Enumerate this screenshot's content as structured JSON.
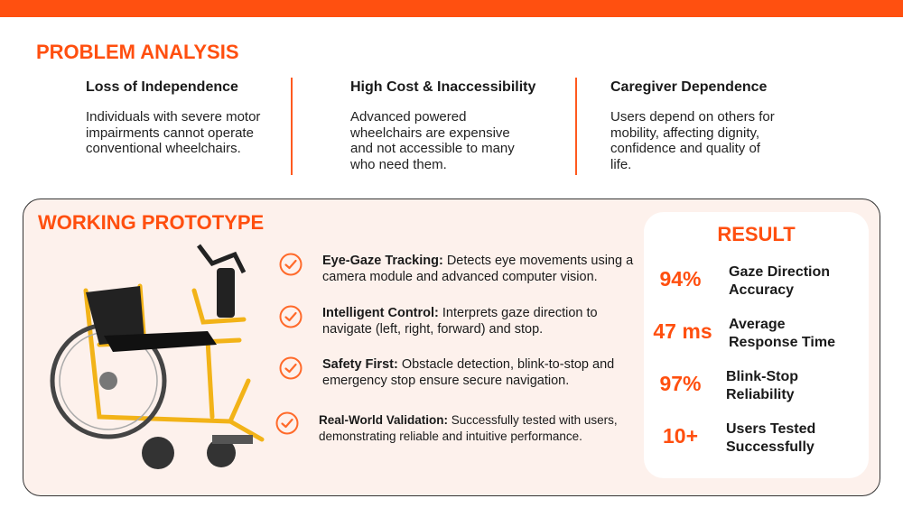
{
  "problem": {
    "title": "PROBLEM ANALYSIS",
    "columns": [
      {
        "heading": "Loss of Independence",
        "text": "Individuals with severe motor impairments cannot operate conventional wheelchairs."
      },
      {
        "heading": "High Cost & Inaccessibility",
        "text": "Advanced powered wheelchairs are expensive and not accessible to many who need them."
      },
      {
        "heading": "Caregiver Dependence",
        "text": "Users depend on others for mobility, affecting dignity, confidence and quality of life."
      }
    ]
  },
  "prototype": {
    "title": "WORKING PROTOTYPE",
    "features": [
      {
        "lead": "Eye-Gaze Tracking:",
        "text": "Detects eye movements using a camera module and advanced computer vision."
      },
      {
        "lead": "Intelligent Control:",
        "text": "Interprets gaze direction to navigate (left, right, forward) and stop."
      },
      {
        "lead": "Safety First:",
        "text": "Obstacle detection, blink-to-stop and emergency stop ensure secure navigation."
      },
      {
        "lead": "Real-World Validation:",
        "text": "Successfully tested with users, demonstrating reliable and intuitive performance."
      }
    ]
  },
  "result": {
    "title": "RESULT",
    "rows": [
      {
        "value": "94%",
        "label": "Gaze Direction Accuracy"
      },
      {
        "value": "47 ms",
        "label": "Average Response Time"
      },
      {
        "value": "97%",
        "label": "Blink-Stop Reliability"
      },
      {
        "value": "10+",
        "label": "Users Tested Successfully"
      }
    ]
  }
}
